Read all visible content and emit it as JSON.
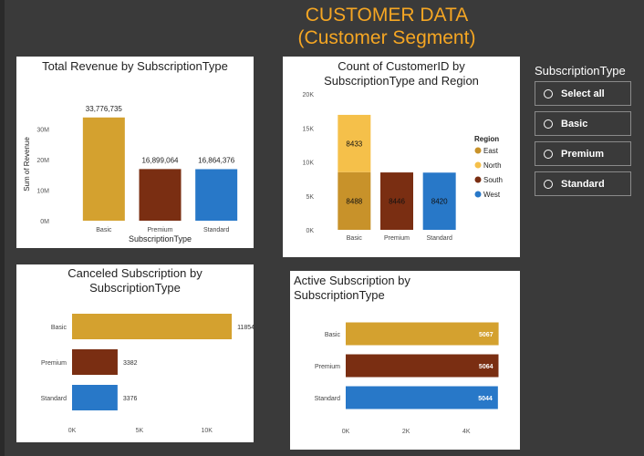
{
  "header": {
    "title_line1": "CUSTOMER DATA",
    "title_line2": "(Customer Segment)"
  },
  "colors": {
    "gold": "#d4a12f",
    "brown": "#7a2e12",
    "blue": "#2878c8",
    "north": "#f5c04a",
    "accent": "#f5a623"
  },
  "slicer": {
    "title": "SubscriptionType",
    "items": [
      {
        "label": "Select all"
      },
      {
        "label": "Basic"
      },
      {
        "label": "Premium"
      },
      {
        "label": "Standard"
      }
    ]
  },
  "chart_data": [
    {
      "type": "bar",
      "title": "Total Revenue by SubscriptionType",
      "xlabel": "SubscriptionType",
      "ylabel": "Sum of Revenue",
      "categories": [
        "Basic",
        "Premium",
        "Standard"
      ],
      "values": [
        33776735,
        16899064,
        16864376
      ],
      "data_labels": [
        "33,776,735",
        "16,899,064",
        "16,864,376"
      ],
      "ylim": [
        0,
        37000000
      ],
      "yticks": [
        0,
        10000000,
        20000000,
        30000000
      ],
      "ytick_labels": [
        "0M",
        "10M",
        "20M",
        "30M"
      ],
      "colors": [
        "#d4a12f",
        "#7a2e12",
        "#2878c8"
      ]
    },
    {
      "type": "bar",
      "stacked": true,
      "title": "Count of CustomerID by SubscriptionType and Region",
      "categories": [
        "Basic",
        "Premium",
        "Standard"
      ],
      "legend_title": "Region",
      "legend": [
        "East",
        "North",
        "South",
        "West"
      ],
      "legend_colors": [
        "#c8922a",
        "#f5c04a",
        "#7a2e12",
        "#2878c8"
      ],
      "segments": [
        {
          "category": "Basic",
          "region": "East",
          "value": 8488
        },
        {
          "category": "Basic",
          "region": "North",
          "value": 8433
        },
        {
          "category": "Premium",
          "region": "South",
          "value": 8446
        },
        {
          "category": "Standard",
          "region": "West",
          "value": 8420
        }
      ],
      "ylim": [
        0,
        20000
      ],
      "yticks": [
        0,
        5000,
        10000,
        15000,
        20000
      ],
      "ytick_labels": [
        "0K",
        "5K",
        "10K",
        "15K",
        "20K"
      ]
    },
    {
      "type": "bar",
      "orientation": "horizontal",
      "title": "Canceled Subscription by SubscriptionType",
      "categories": [
        "Basic",
        "Premium",
        "Standard"
      ],
      "values": [
        11854,
        3382,
        3376
      ],
      "xlim": [
        0,
        13000
      ],
      "xticks": [
        0,
        5000,
        10000
      ],
      "xtick_labels": [
        "0K",
        "5K",
        "10K"
      ],
      "colors": [
        "#d4a12f",
        "#7a2e12",
        "#2878c8"
      ]
    },
    {
      "type": "bar",
      "orientation": "horizontal",
      "title": "Active Subscription by SubscriptionType",
      "categories": [
        "Basic",
        "Premium",
        "Standard"
      ],
      "values": [
        5067,
        5064,
        5044
      ],
      "xlim": [
        0,
        5200
      ],
      "xticks": [
        0,
        2000,
        4000
      ],
      "xtick_labels": [
        "0K",
        "2K",
        "4K"
      ],
      "colors": [
        "#d4a12f",
        "#7a2e12",
        "#2878c8"
      ]
    }
  ]
}
